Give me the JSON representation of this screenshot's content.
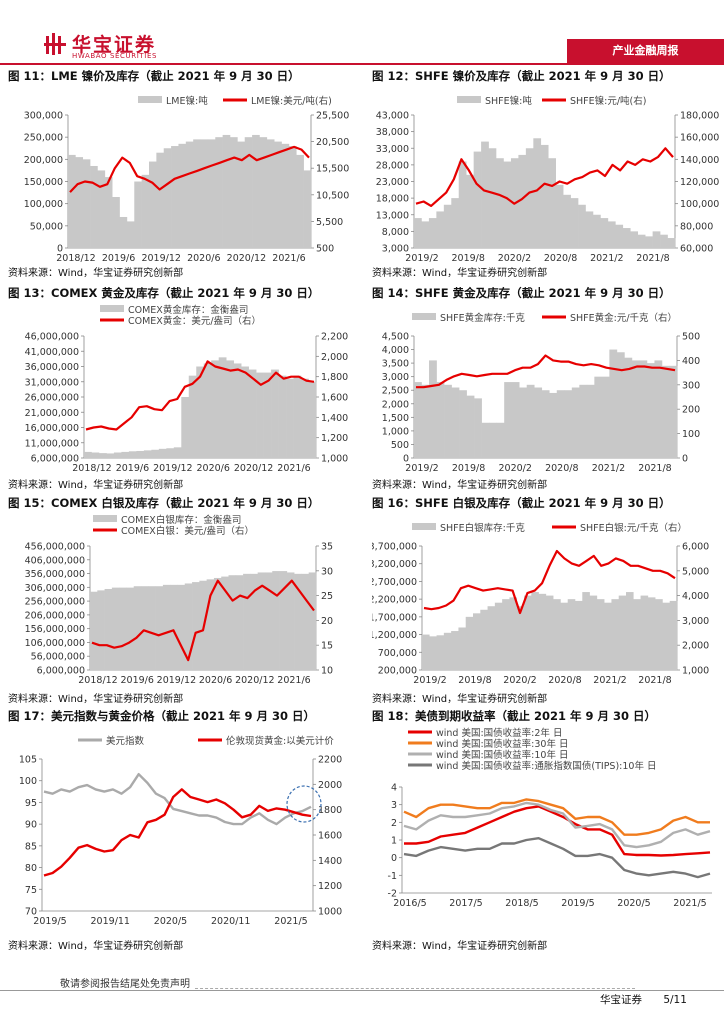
{
  "header": {
    "brand_cn": "华宝证券",
    "brand_en": "HWABAO SECURITIES",
    "report_type": "产业金融周报",
    "accent_color": "#c8102e"
  },
  "footer": {
    "disclaimer": "敬请参阅报告结尾处免责声明",
    "company": "华宝证券",
    "page": "5/11"
  },
  "figures": [
    {
      "id": "fig11",
      "title": "图 11：LME 镍价及库存（截止 2021 年 9 月 30 日）",
      "source": "资料来源：Wind，华宝证券研究创新部",
      "chart_data": {
        "type": "bar+line",
        "legend": [
          "LME镍:吨",
          "LME镍:美元/吨(右)"
        ],
        "left_axis": {
          "ticks": [
            "300,000",
            "250,000",
            "200,000",
            "150,000",
            "100,000",
            "50,000",
            "0"
          ],
          "range": [
            0,
            300000
          ]
        },
        "right_axis": {
          "ticks": [
            "25,500",
            "20,500",
            "15,500",
            "10,500",
            "5,500",
            "500"
          ],
          "range": [
            500,
            25500
          ]
        },
        "x_ticks": [
          "2018/12",
          "2019/6",
          "2019/12",
          "2020/6",
          "2020/12",
          "2021/6"
        ],
        "bars": [
          210000,
          205000,
          200000,
          185000,
          175000,
          160000,
          115000,
          70000,
          60000,
          150000,
          165000,
          195000,
          215000,
          225000,
          230000,
          235000,
          240000,
          245000,
          245000,
          245000,
          250000,
          255000,
          250000,
          240000,
          250000,
          255000,
          250000,
          245000,
          240000,
          235000,
          230000,
          210000,
          175000
        ],
        "line": [
          11000,
          12500,
          13000,
          12800,
          12000,
          12500,
          15500,
          17500,
          16500,
          14000,
          13500,
          12800,
          11500,
          12500,
          13500,
          14000,
          14500,
          15000,
          15500,
          16000,
          16500,
          17000,
          17500,
          17000,
          18000,
          17000,
          17500,
          18000,
          18500,
          19000,
          19500,
          19000,
          17500
        ],
        "bar_color": "#c8c8c8",
        "line_color": "#e60000"
      }
    },
    {
      "id": "fig12",
      "title": "图 12：SHFE 镍价及库存（截止 2021 年 9 月 30 日）",
      "source": "资料来源：Wind，华宝证券研究创新部",
      "chart_data": {
        "type": "area+line",
        "legend": [
          "SHFE镍:吨",
          "SHFE镍:元/吨(右)"
        ],
        "left_axis": {
          "ticks": [
            "43,000",
            "38,000",
            "33,000",
            "28,000",
            "23,000",
            "18,000",
            "13,000",
            "8,000",
            "3,000"
          ],
          "range": [
            3000,
            43000
          ]
        },
        "right_axis": {
          "ticks": [
            "180,000",
            "160,000",
            "140,000",
            "120,000",
            "100,000",
            "80,000",
            "60,000"
          ],
          "range": [
            60000,
            180000
          ]
        },
        "x_ticks": [
          "2019/2",
          "2019/8",
          "2020/2",
          "2020/8",
          "2021/2",
          "2021/8"
        ],
        "bars": [
          12000,
          11000,
          12000,
          14000,
          16000,
          18000,
          29000,
          25000,
          32000,
          35000,
          33000,
          30000,
          29000,
          30000,
          31000,
          33000,
          36000,
          34000,
          30000,
          22000,
          19000,
          18000,
          16000,
          14000,
          13000,
          12000,
          11000,
          10000,
          9000,
          8000,
          7000,
          6500,
          8000,
          7000,
          6000
        ],
        "line": [
          100000,
          102000,
          98000,
          104000,
          110000,
          122000,
          140000,
          130000,
          118000,
          112000,
          110000,
          108000,
          105000,
          100000,
          104000,
          110000,
          112000,
          118000,
          116000,
          120000,
          118000,
          122000,
          124000,
          128000,
          130000,
          125000,
          135000,
          130000,
          138000,
          135000,
          140000,
          138000,
          142000,
          150000,
          142000
        ],
        "bar_color": "#c8c8c8",
        "line_color": "#e60000"
      }
    },
    {
      "id": "fig13",
      "title": "图 13：COMEX 黄金及库存（截止 2021 年 9 月 30 日）",
      "source": "资料来源：Wind，华宝证券研究创新部",
      "chart_data": {
        "type": "area+line",
        "legend": [
          "COMEX黄金库存：金衡盎司",
          "COMEX黄金：美元/盎司（右）"
        ],
        "left_axis": {
          "ticks": [
            "46,000,000",
            "41,000,000",
            "36,000,000",
            "31,000,000",
            "26,000,000",
            "21,000,000",
            "16,000,000",
            "11,000,000",
            "6,000,000"
          ],
          "range": [
            6000000,
            46000000
          ]
        },
        "right_axis": {
          "ticks": [
            "2,200",
            "2,000",
            "1,800",
            "1,600",
            "1,400",
            "1,200",
            "1,000"
          ],
          "range": [
            1000,
            2200
          ]
        },
        "x_ticks": [
          "2018/12",
          "2019/6",
          "2019/12",
          "2020/6",
          "2020/12",
          "2021/6"
        ],
        "bars": [
          8000000,
          7800000,
          7600000,
          7500000,
          7800000,
          8000000,
          8200000,
          8300000,
          8500000,
          8700000,
          9000000,
          9200000,
          9500000,
          26000000,
          33000000,
          36000000,
          37000000,
          38000000,
          39000000,
          38000000,
          37000000,
          36000000,
          35000000,
          34000000,
          34000000,
          35000000,
          33000000,
          32000000,
          33000000,
          32000000,
          31000000
        ],
        "line": [
          1280,
          1300,
          1310,
          1290,
          1280,
          1340,
          1400,
          1500,
          1510,
          1480,
          1470,
          1560,
          1580,
          1700,
          1730,
          1800,
          1950,
          1900,
          1880,
          1860,
          1870,
          1840,
          1780,
          1720,
          1760,
          1840,
          1780,
          1800,
          1800,
          1760,
          1750
        ],
        "bar_color": "#c8c8c8",
        "line_color": "#e60000"
      }
    },
    {
      "id": "fig14",
      "title": "图 14：SHFE 黄金及库存（截止 2021 年 9 月 30 日）",
      "source": "资料来源：Wind，华宝证券研究创新部",
      "chart_data": {
        "type": "bar+line",
        "legend": [
          "SHFE黄金库存:千克",
          "SHFE黄金:元/千克（右）"
        ],
        "left_axis": {
          "ticks": [
            "4,500",
            "4,000",
            "3,500",
            "3,000",
            "2,500",
            "2,000",
            "1,500",
            "1,000",
            "500",
            "0"
          ],
          "range": [
            0,
            4500
          ]
        },
        "right_axis": {
          "ticks": [
            "500",
            "400",
            "300",
            "200",
            "100",
            "0"
          ],
          "range": [
            0,
            500
          ]
        },
        "x_ticks": [
          "2019/2",
          "2019/8",
          "2020/2",
          "2020/8",
          "2021/2",
          "2021/8"
        ],
        "bars": [
          2800,
          2700,
          3600,
          2800,
          2700,
          2600,
          2500,
          2300,
          2200,
          1300,
          1300,
          1300,
          2800,
          2800,
          2600,
          2700,
          2600,
          2500,
          2400,
          2500,
          2500,
          2600,
          2700,
          2700,
          3000,
          3000,
          4000,
          3900,
          3700,
          3600,
          3600,
          3500,
          3600,
          3400,
          3400
        ],
        "line": [
          290,
          290,
          295,
          300,
          320,
          335,
          345,
          340,
          335,
          340,
          345,
          345,
          345,
          360,
          370,
          370,
          385,
          420,
          400,
          395,
          395,
          385,
          380,
          385,
          380,
          370,
          365,
          360,
          365,
          375,
          375,
          370,
          370,
          365,
          360
        ],
        "bar_color": "#c8c8c8",
        "line_color": "#e60000"
      }
    },
    {
      "id": "fig15",
      "title": "图 15：COMEX 白银及库存（截止 2021 年 9 月 30 日）",
      "source": "资料来源：Wind，华宝证券研究创新部",
      "chart_data": {
        "type": "area+line",
        "legend": [
          "COMEX白银库存：金衡盎司",
          "COMEX白银：美元/盎司（右）"
        ],
        "left_axis": {
          "ticks": [
            "456,000,000",
            "406,000,000",
            "356,000,000",
            "306,000,000",
            "256,000,000",
            "206,000,000",
            "156,000,000",
            "106,000,000",
            "56,000,000",
            "6,000,000"
          ],
          "range": [
            6000000,
            456000000
          ]
        },
        "right_axis": {
          "ticks": [
            "35",
            "30",
            "25",
            "20",
            "15",
            "10"
          ],
          "range": [
            10,
            35
          ]
        },
        "x_ticks": [
          "2018/12",
          "2019/6",
          "2019/12",
          "2020/6",
          "2020/12",
          "2021/6"
        ],
        "bars": [
          290000000,
          295000000,
          300000000,
          305000000,
          305000000,
          305000000,
          310000000,
          310000000,
          310000000,
          310000000,
          315000000,
          315000000,
          315000000,
          320000000,
          325000000,
          330000000,
          335000000,
          340000000,
          345000000,
          350000000,
          350000000,
          355000000,
          355000000,
          360000000,
          360000000,
          365000000,
          365000000,
          360000000,
          355000000,
          355000000,
          360000000
        ],
        "line": [
          15.5,
          15.0,
          15.0,
          14.5,
          14.8,
          15.5,
          16.5,
          18.0,
          17.5,
          17.0,
          17.5,
          18.0,
          15.0,
          12.0,
          17.5,
          18.0,
          25.0,
          28.0,
          26.0,
          24.0,
          25.0,
          24.5,
          26.0,
          27.0,
          26.0,
          25.0,
          26.5,
          28.0,
          26.0,
          24.0,
          22.0
        ],
        "bar_color": "#c8c8c8",
        "line_color": "#e60000"
      }
    },
    {
      "id": "fig16",
      "title": "图 16：SHFE 白银及库存（截止 2021 年 9 月 30 日）",
      "source": "资料来源：Wind，华宝证券研究创新部",
      "chart_data": {
        "type": "area+line",
        "legend": [
          "SHFE白银库存:千克",
          "SHFE白银:元/千克（右）"
        ],
        "left_axis": {
          "ticks": [
            "3,700,000",
            "3,200,000",
            "2,700,000",
            "2,200,000",
            "1,700,000",
            "1,200,000",
            "700,000",
            "200,000"
          ],
          "range": [
            200000,
            3700000
          ]
        },
        "right_axis": {
          "ticks": [
            "6,000",
            "5,000",
            "4,000",
            "3,000",
            "2,000",
            "1,000"
          ],
          "range": [
            1000,
            6000
          ]
        },
        "x_ticks": [
          "2019/2",
          "2019/8",
          "2020/2",
          "2020/8",
          "2021/2",
          "2021/8"
        ],
        "bars": [
          1200000,
          1150000,
          1180000,
          1250000,
          1300000,
          1400000,
          1700000,
          1800000,
          1900000,
          2000000,
          2100000,
          2200000,
          2250000,
          2000000,
          2300000,
          2400000,
          2350000,
          2300000,
          2200000,
          2100000,
          2200000,
          2150000,
          2400000,
          2300000,
          2200000,
          2100000,
          2200000,
          2300000,
          2400000,
          2200000,
          2300000,
          2250000,
          2200000,
          2100000,
          2150000
        ],
        "line": [
          3500,
          3450,
          3500,
          3600,
          3800,
          4300,
          4400,
          4300,
          4200,
          4250,
          4300,
          4250,
          4200,
          3300,
          4100,
          4200,
          4500,
          5200,
          5800,
          5500,
          5300,
          5200,
          5400,
          5600,
          5200,
          5300,
          5500,
          5400,
          5200,
          5200,
          5100,
          5000,
          5000,
          4900,
          4700
        ],
        "bar_color": "#c8c8c8",
        "line_color": "#e60000"
      }
    },
    {
      "id": "fig17",
      "title": "图 17：美元指数与黄金价格（截止 2021 年 9 月 30 日）",
      "source": "资料来源：Wind，华宝证券研究创新部",
      "chart_data": {
        "type": "line",
        "legend": [
          "美元指数",
          "伦敦现货黄金:以美元计价"
        ],
        "left_axis": {
          "ticks": [
            "105",
            "100",
            "95",
            "90",
            "85",
            "80",
            "75",
            "70"
          ],
          "range": [
            70,
            105
          ]
        },
        "right_axis": {
          "ticks": [
            "2200",
            "2000",
            "1800",
            "1600",
            "1400",
            "1200",
            "1000"
          ],
          "range": [
            1000,
            2200
          ]
        },
        "x_ticks": [
          "2019/5",
          "2019/11",
          "2020/5",
          "2020/11",
          "2021/5"
        ],
        "series": [
          {
            "name": "美元指数",
            "color": "#aaaaaa",
            "values": [
              97.5,
              97.0,
              98.0,
              97.5,
              98.5,
              99.0,
              98.0,
              97.5,
              98.0,
              97.0,
              98.5,
              101.5,
              99.5,
              97.0,
              96.0,
              93.5,
              93.0,
              92.5,
              92.0,
              92.0,
              91.5,
              90.5,
              90.0,
              90.0,
              91.5,
              92.5,
              91.0,
              90.0,
              91.5,
              92.5,
              93.0,
              94.0
            ]
          },
          {
            "name": "伦敦现货黄金:以美元计价",
            "color": "#e60000",
            "values": [
              1280,
              1300,
              1350,
              1420,
              1500,
              1520,
              1490,
              1470,
              1480,
              1560,
              1600,
              1580,
              1700,
              1720,
              1760,
              1900,
              1960,
              1900,
              1880,
              1860,
              1880,
              1850,
              1800,
              1740,
              1760,
              1830,
              1790,
              1810,
              1800,
              1780,
              1760,
              1750
            ]
          }
        ]
      }
    },
    {
      "id": "fig18",
      "title": "图 18：美债到期收益率（截止 2021 年 9 月 30 日）",
      "source": "资料来源：Wind，华宝证券研究创新部",
      "chart_data": {
        "type": "line",
        "legend": [
          "wind 美国:国债收益率:2年 日",
          "wind 美国:国债收益率:30年 日",
          "wind 美国:国债收益率:10年 日",
          "wind 美国:国债收益率:通胀指数国债(TIPS):10年 日"
        ],
        "y_axis": {
          "ticks": [
            "4",
            "3",
            "2",
            "1",
            "0",
            "-1",
            "-2"
          ],
          "range": [
            -2,
            4
          ]
        },
        "x_ticks": [
          "2016/5",
          "2017/5",
          "2018/5",
          "2019/5",
          "2020/5",
          "2021/5"
        ],
        "series": [
          {
            "name": "2年",
            "color": "#e60000",
            "values": [
              0.8,
              0.8,
              0.9,
              1.2,
              1.3,
              1.4,
              1.7,
              2.0,
              2.3,
              2.6,
              2.8,
              2.9,
              2.6,
              2.3,
              1.9,
              1.6,
              1.6,
              1.3,
              0.2,
              0.15,
              0.15,
              0.12,
              0.15,
              0.2,
              0.25,
              0.3
            ]
          },
          {
            "name": "30年",
            "color": "#f07c1e",
            "values": [
              2.6,
              2.3,
              2.8,
              3.0,
              3.0,
              2.9,
              2.8,
              2.8,
              3.1,
              3.1,
              3.3,
              3.2,
              3.0,
              2.8,
              2.2,
              2.3,
              2.3,
              2.0,
              1.3,
              1.3,
              1.4,
              1.6,
              2.1,
              2.3,
              2.0,
              2.0
            ]
          },
          {
            "name": "10年",
            "color": "#b0b0b0",
            "values": [
              1.8,
              1.6,
              2.1,
              2.4,
              2.3,
              2.3,
              2.4,
              2.5,
              2.8,
              2.9,
              3.1,
              3.0,
              2.7,
              2.5,
              1.7,
              1.8,
              1.9,
              1.6,
              0.7,
              0.6,
              0.7,
              0.9,
              1.4,
              1.6,
              1.3,
              1.5
            ]
          },
          {
            "name": "TIPS 10年",
            "color": "#777777",
            "values": [
              0.2,
              0.1,
              0.4,
              0.6,
              0.5,
              0.4,
              0.5,
              0.5,
              0.8,
              0.8,
              1.0,
              1.1,
              0.8,
              0.5,
              0.1,
              0.1,
              0.2,
              0.0,
              -0.7,
              -0.9,
              -1.0,
              -0.9,
              -0.8,
              -0.9,
              -1.1,
              -0.9
            ]
          }
        ]
      }
    }
  ]
}
